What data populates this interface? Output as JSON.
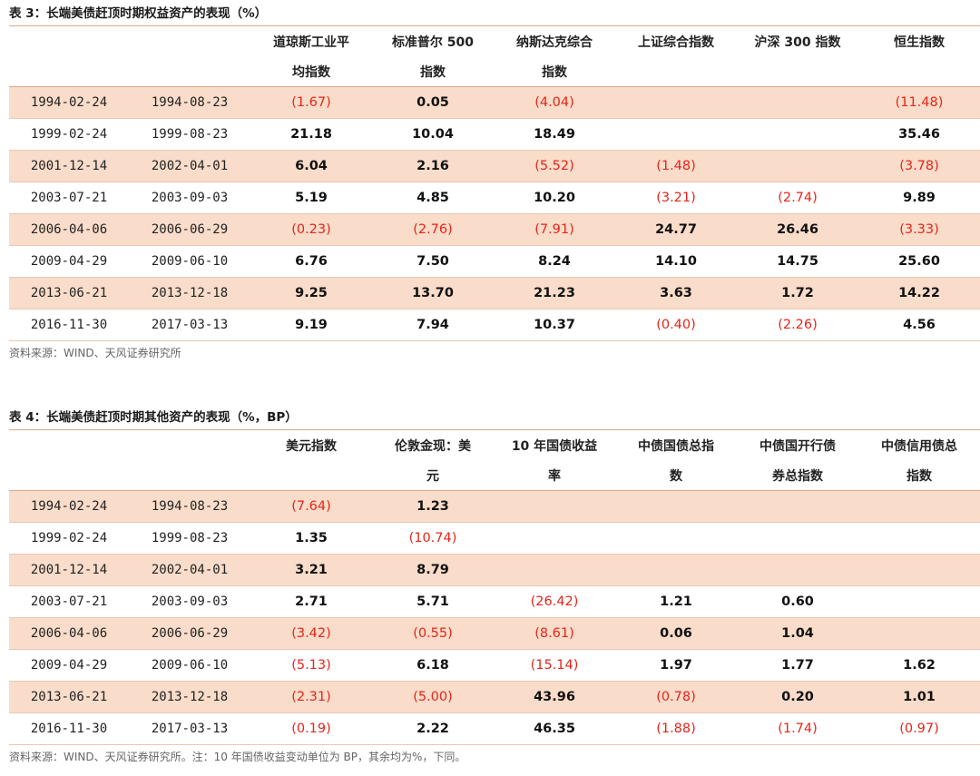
{
  "table3": {
    "title": "表 3：长端美债赶顶时期权益资产的表现（%）",
    "header_line1": [
      "",
      "",
      "道琼斯工业平",
      "标准普尔 500",
      "纳斯达克综合",
      "上证综合指数",
      "沪深 300 指数",
      "恒生指数"
    ],
    "header_line2": [
      "",
      "",
      "均指数",
      "指数",
      "指数",
      "",
      "",
      ""
    ],
    "rows": [
      [
        "1994-02-24",
        "1994-08-23",
        "(1.67)",
        "0.05",
        "(4.04)",
        "",
        "",
        "(11.48)"
      ],
      [
        "1999-02-24",
        "1999-08-23",
        "21.18",
        "10.04",
        "18.49",
        "",
        "",
        "35.46"
      ],
      [
        "2001-12-14",
        "2002-04-01",
        "6.04",
        "2.16",
        "(5.52)",
        "(1.48)",
        "",
        "(3.78)"
      ],
      [
        "2003-07-21",
        "2003-09-03",
        "5.19",
        "4.85",
        "10.20",
        "(3.21)",
        "(2.74)",
        "9.89"
      ],
      [
        "2006-04-06",
        "2006-06-29",
        "(0.23)",
        "(2.76)",
        "(7.91)",
        "24.77",
        "26.46",
        "(3.33)"
      ],
      [
        "2009-04-29",
        "2009-06-10",
        "6.76",
        "7.50",
        "8.24",
        "14.10",
        "14.75",
        "25.60"
      ],
      [
        "2013-06-21",
        "2013-12-18",
        "9.25",
        "13.70",
        "21.23",
        "3.63",
        "1.72",
        "14.22"
      ],
      [
        "2016-11-30",
        "2017-03-13",
        "9.19",
        "7.94",
        "10.37",
        "(0.40)",
        "(2.26)",
        "4.56"
      ]
    ],
    "source": "资料来源：WIND、天风证券研究所"
  },
  "table4": {
    "title": "表 4：长端美债赶顶时期其他资产的表现（%，BP）",
    "header_line1": [
      "",
      "",
      "美元指数",
      "伦敦金现：美",
      "10 年国债收益",
      "中债国债总指",
      "中债国开行债",
      "中债信用债总"
    ],
    "header_line2": [
      "",
      "",
      "",
      "元",
      "率",
      "数",
      "券总指数",
      "指数"
    ],
    "rows": [
      [
        "1994-02-24",
        "1994-08-23",
        "(7.64)",
        "1.23",
        "",
        "",
        "",
        ""
      ],
      [
        "1999-02-24",
        "1999-08-23",
        "1.35",
        "(10.74)",
        "",
        "",
        "",
        ""
      ],
      [
        "2001-12-14",
        "2002-04-01",
        "3.21",
        "8.79",
        "",
        "",
        "",
        ""
      ],
      [
        "2003-07-21",
        "2003-09-03",
        "2.71",
        "5.71",
        "(26.42)",
        "1.21",
        "0.60",
        ""
      ],
      [
        "2006-04-06",
        "2006-06-29",
        "(3.42)",
        "(0.55)",
        "(8.61)",
        "0.06",
        "1.04",
        ""
      ],
      [
        "2009-04-29",
        "2009-06-10",
        "(5.13)",
        "6.18",
        "(15.14)",
        "1.97",
        "1.77",
        "1.62"
      ],
      [
        "2013-06-21",
        "2013-12-18",
        "(2.31)",
        "(5.00)",
        "43.96",
        "(0.78)",
        "0.20",
        "1.01"
      ],
      [
        "2016-11-30",
        "2017-03-13",
        "(0.19)",
        "2.22",
        "46.35",
        "(1.88)",
        "(1.74)",
        "(0.97)"
      ]
    ],
    "source": "资料来源：WIND、天风证券研究所。注：10 年国债收益变动单位为 BP，其余均为%，下同。"
  },
  "colors": {
    "row_shade": "#f9dcc9",
    "negative": "#e8241a",
    "rule": "#d9a989"
  }
}
